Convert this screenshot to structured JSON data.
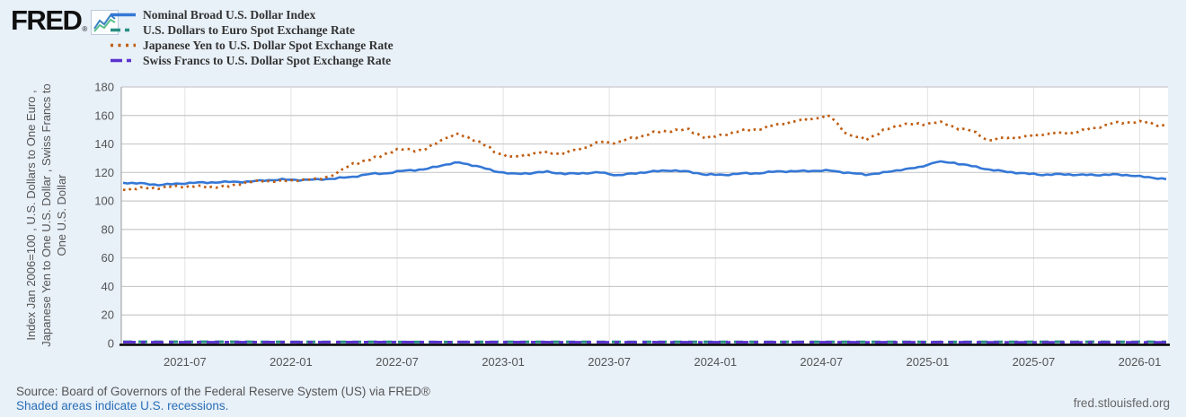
{
  "logo": {
    "text": "FRED",
    "reg": "®"
  },
  "y_axis_label": {
    "line1": "Index Jan 2006=100 , U.S. Dollars to One Euro ,",
    "line2": "Japanese Yen to One U.S. Dollar , Swiss Francs to",
    "line3": "One U.S. Dollar"
  },
  "footer": {
    "source": "Source: Board of Governors of the Federal Reserve System (US) via FRED®",
    "recession_note": "Shaded areas indicate U.S. recessions.",
    "watermark": "fred.stlouisfed.org"
  },
  "colors": {
    "background": "#e8f0f8",
    "plot_background": "#ffffff",
    "gridline": "#c9c9c9",
    "v_gridline": "#e3e3e3",
    "axis_line": "#000000",
    "tick_label": "#555555",
    "legend_text": "#333333",
    "link": "#2a6fb7"
  },
  "chart_data": {
    "type": "line",
    "title": "",
    "xlabel": "",
    "ylabel": "Index Jan 2006=100 , U.S. Dollars to One Euro , Japanese Yen to One U.S. Dollar , Swiss Francs to One U.S. Dollar",
    "grid": true,
    "legend_position": "top-left",
    "ylim": [
      0,
      180
    ],
    "y_ticks": [
      0,
      20,
      40,
      60,
      80,
      100,
      120,
      140,
      160,
      180
    ],
    "x_range": [
      "2021-03",
      "2026-02"
    ],
    "x_ticks": [
      "2021-07",
      "2022-01",
      "2022-07",
      "2023-01",
      "2023-07",
      "2024-01",
      "2024-07",
      "2025-01",
      "2025-07",
      "2026-01"
    ],
    "x_unit": "month",
    "series": [
      {
        "id": "nominal-broad-us-dollar-index",
        "name": "Nominal Broad U.S. Dollar Index",
        "color": "#3477d6",
        "style": "solid",
        "dash": null,
        "legend_dash": null,
        "width": 2.6,
        "jitter": 0.55,
        "values": [
          112.8,
          112.3,
          111.3,
          112.0,
          112.8,
          113.0,
          113.4,
          113.5,
          114.5,
          115.0,
          114.8,
          115.0,
          115.8,
          117.0,
          119.0,
          119.5,
          121.5,
          122.0,
          125.0,
          127.0,
          124.5,
          121.0,
          119.0,
          119.5,
          120.5,
          119.0,
          119.5,
          120.0,
          118.0,
          119.5,
          120.8,
          121.5,
          120.5,
          118.5,
          118.3,
          119.3,
          119.5,
          120.8,
          120.8,
          121.2,
          121.3,
          119.8,
          118.5,
          119.8,
          122.0,
          123.5,
          127.5,
          126.8,
          124.5,
          122.0,
          120.5,
          119.3,
          118.4,
          118.8,
          118.4,
          118.2,
          118.6,
          118.0,
          116.5,
          115.5
        ]
      },
      {
        "id": "us-dollars-to-euro",
        "name": "U.S. Dollars to Euro Spot Exchange Rate",
        "color": "#278f83",
        "style": "dashed",
        "dash": "10,7",
        "legend_dash": "11,5,5",
        "width": 3,
        "jitter": 0.02,
        "values": [
          1.19,
          1.2,
          1.21,
          1.2,
          1.18,
          1.18,
          1.18,
          1.16,
          1.14,
          1.13,
          1.13,
          1.13,
          1.1,
          1.08,
          1.06,
          1.06,
          1.02,
          1.01,
          0.99,
          0.98,
          1.02,
          1.06,
          1.08,
          1.07,
          1.07,
          1.1,
          1.09,
          1.08,
          1.11,
          1.09,
          1.07,
          1.06,
          1.08,
          1.09,
          1.09,
          1.08,
          1.09,
          1.07,
          1.08,
          1.08,
          1.08,
          1.1,
          1.11,
          1.09,
          1.06,
          1.05,
          1.03,
          1.04,
          1.08,
          1.13,
          1.12,
          1.15,
          1.17,
          1.17,
          1.17,
          1.16,
          1.16,
          1.17,
          1.16,
          1.17
        ]
      },
      {
        "id": "japanese-yen-to-us-dollar",
        "name": "Japanese Yen to U.S. Dollar Spot Exchange Rate",
        "color": "#c05d11",
        "style": "dotted",
        "dash": "2.6,4.2",
        "legend_dash": "3,5.5",
        "width": 2.7,
        "jitter": 1.25,
        "values": [
          108.0,
          108.9,
          109.2,
          110.1,
          110.3,
          109.8,
          110.2,
          113.2,
          114.0,
          113.9,
          114.8,
          115.2,
          118.7,
          126.3,
          128.8,
          134.1,
          136.6,
          135.2,
          143.1,
          147.0,
          142.3,
          134.9,
          130.3,
          133.2,
          133.9,
          133.4,
          137.3,
          141.3,
          141.2,
          144.7,
          147.7,
          149.6,
          149.8,
          144.1,
          146.6,
          149.4,
          150.4,
          153.6,
          155.9,
          157.9,
          159.5,
          146.3,
          143.3,
          149.1,
          154.0,
          153.6,
          155.5,
          152.0,
          149.0,
          142.5,
          144.5,
          144.8,
          147.0,
          147.5,
          148.5,
          151.5,
          154.5,
          155.5,
          155.0,
          152.5
        ]
      },
      {
        "id": "swiss-francs-to-us-dollar",
        "name": "Swiss Francs to U.S. Dollar Spot Exchange Rate",
        "color": "#5b33cf",
        "style": "dashed",
        "dash": "14,6,5,6",
        "legend_dash": "13,5,5",
        "width": 3,
        "jitter": 0.02,
        "values": [
          0.93,
          0.92,
          0.9,
          0.91,
          0.92,
          0.91,
          0.93,
          0.92,
          0.92,
          0.92,
          0.92,
          0.92,
          0.93,
          0.95,
          0.98,
          0.96,
          0.96,
          0.96,
          0.97,
          1.0,
          0.95,
          0.93,
          0.92,
          0.93,
          0.92,
          0.89,
          0.9,
          0.9,
          0.87,
          0.88,
          0.91,
          0.9,
          0.88,
          0.85,
          0.86,
          0.88,
          0.9,
          0.91,
          0.91,
          0.9,
          0.88,
          0.85,
          0.84,
          0.86,
          0.88,
          0.9,
          0.91,
          0.9,
          0.88,
          0.83,
          0.82,
          0.81,
          0.8,
          0.81,
          0.8,
          0.8,
          0.81,
          0.8,
          0.8,
          0.81
        ]
      }
    ]
  }
}
